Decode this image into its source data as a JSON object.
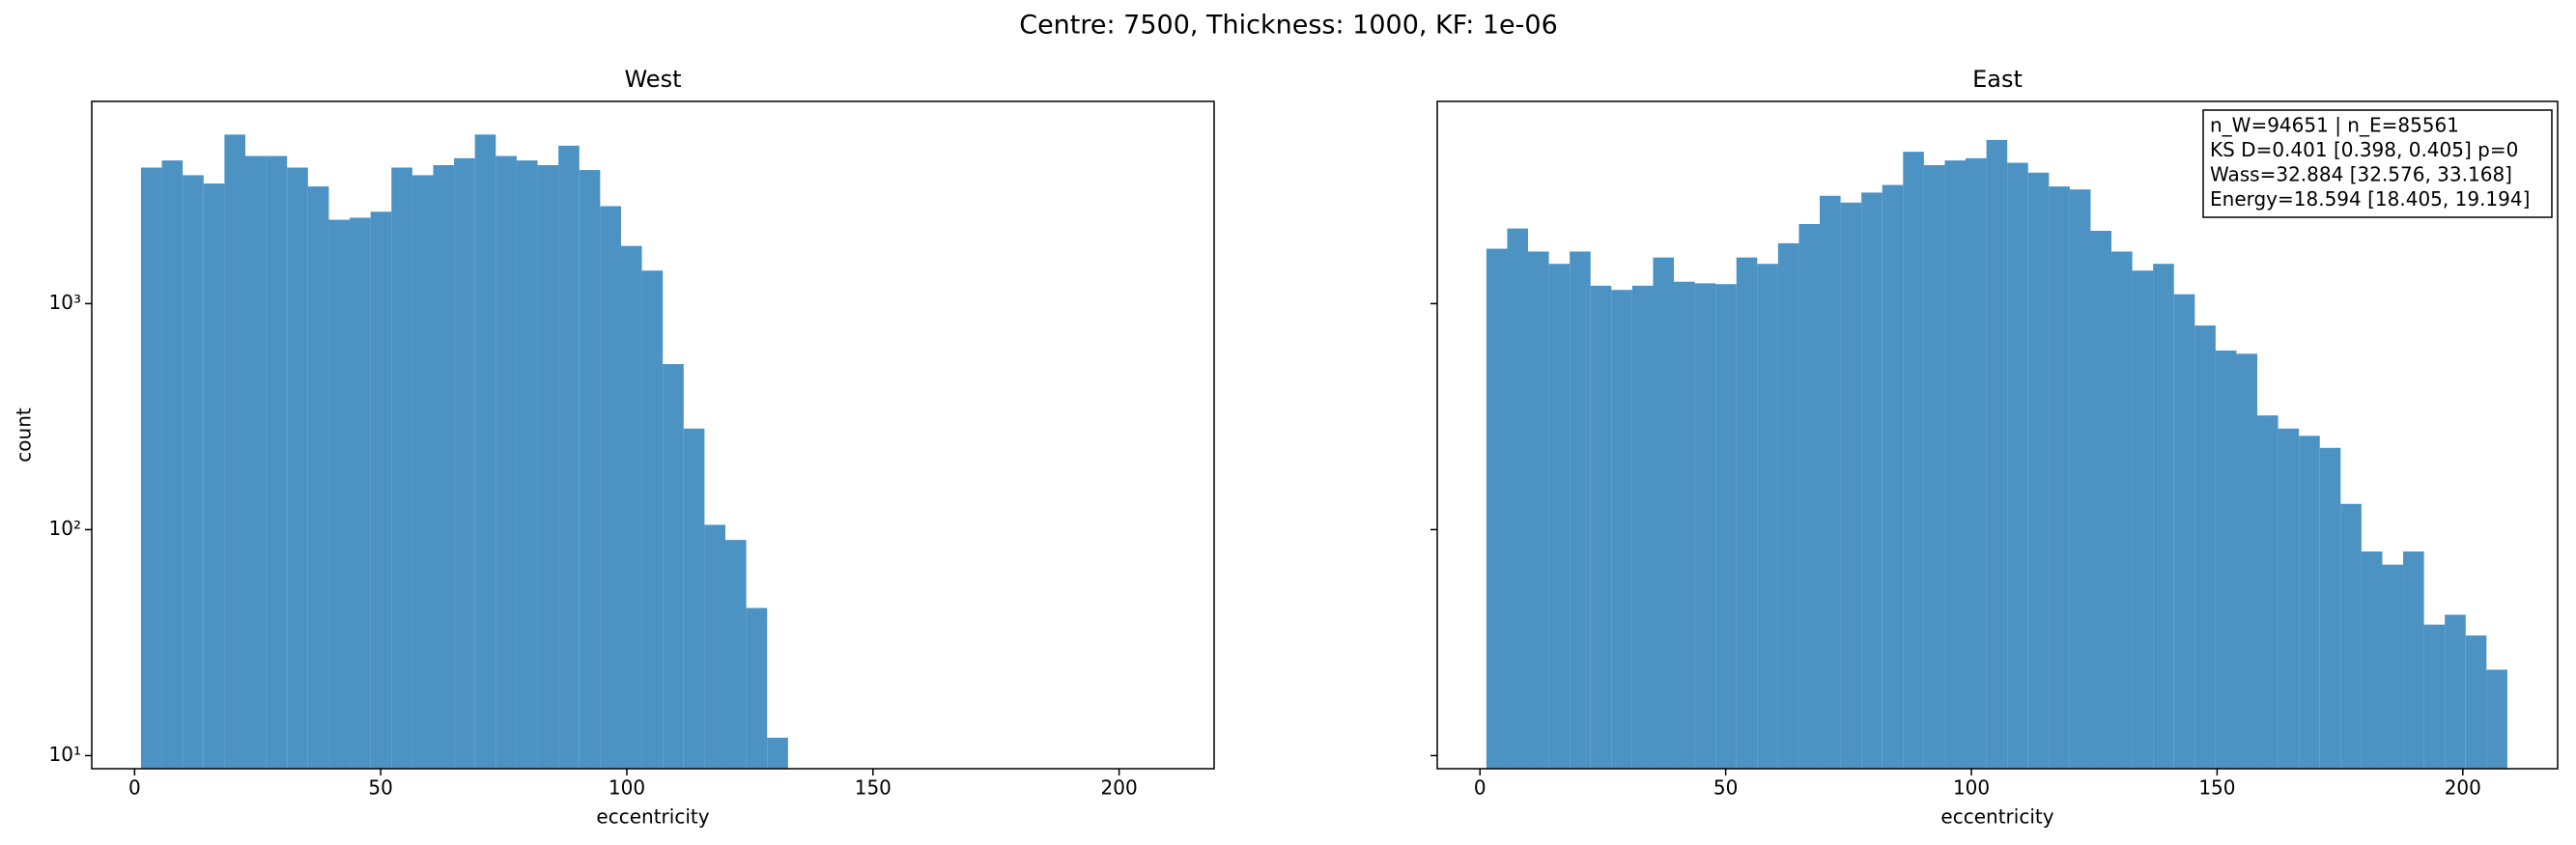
{
  "title": "Centre: 7500, Thickness: 1000, KF: 1e-06",
  "chart_data": [
    {
      "type": "histogram",
      "title": "West",
      "x_label": "eccentricity",
      "y_label": "count",
      "color": "#4c92c3",
      "log_y": true,
      "bins": [
        1.3,
        5.54,
        9.78,
        14.02,
        18.26,
        22.5,
        26.74,
        30.98,
        35.22,
        39.46,
        43.7,
        47.94,
        52.18,
        56.42,
        60.66,
        64.9,
        69.14,
        73.38,
        77.62,
        81.86,
        86.1,
        90.34,
        94.58,
        98.82,
        103.06,
        107.3,
        111.54,
        115.78,
        120.02,
        124.26,
        128.5,
        132.74
      ],
      "values": [
        4000,
        4300,
        3700,
        3400,
        5600,
        4500,
        4500,
        4000,
        3300,
        2350,
        2400,
        2550,
        4000,
        3700,
        4100,
        4400,
        5600,
        4500,
        4300,
        4100,
        5000,
        3900,
        2700,
        1800,
        1400,
        540,
        280,
        105,
        90,
        45,
        12
      ],
      "xlim": [
        -8.7,
        219.3
      ],
      "xticks": [
        0,
        50,
        100,
        150,
        200
      ],
      "ylim": [
        8.75,
        7850
      ],
      "yticks": [
        {
          "value": 10,
          "label": "10¹"
        },
        {
          "value": 100,
          "label": "10²"
        },
        {
          "value": 1000,
          "label": "10³"
        }
      ]
    },
    {
      "type": "histogram",
      "title": "East",
      "x_label": "eccentricity",
      "color": "#4c92c3",
      "log_y": true,
      "bins": [
        1.3,
        5.54,
        9.78,
        14.02,
        18.26,
        22.5,
        26.74,
        30.98,
        35.22,
        39.46,
        43.7,
        47.94,
        52.18,
        56.42,
        60.66,
        64.9,
        69.14,
        73.38,
        77.62,
        81.86,
        86.1,
        90.34,
        94.58,
        98.82,
        103.06,
        107.3,
        111.54,
        115.78,
        120.02,
        124.26,
        128.5,
        132.74,
        136.98,
        141.22,
        145.46,
        149.7,
        153.94,
        158.18,
        162.42,
        166.66,
        170.9,
        175.14,
        179.38,
        183.62,
        187.86,
        192.1,
        196.34,
        200.58,
        204.82,
        209.06
      ],
      "values": [
        1750,
        2150,
        1700,
        1500,
        1700,
        1200,
        1150,
        1200,
        1600,
        1250,
        1230,
        1220,
        1600,
        1500,
        1850,
        2250,
        3000,
        2800,
        3100,
        3350,
        4700,
        4100,
        4300,
        4400,
        5300,
        4200,
        3800,
        3300,
        3200,
        2100,
        1700,
        1400,
        1500,
        1100,
        800,
        620,
        600,
        320,
        280,
        260,
        230,
        130,
        80,
        70,
        80,
        38,
        42,
        34,
        24
      ],
      "xlim": [
        -8.7,
        219.3
      ],
      "xticks": [
        0,
        50,
        100,
        150,
        200
      ],
      "ylim": [
        8.75,
        7850
      ],
      "yticks": [
        10,
        100,
        1000
      ],
      "annotation": [
        "n_W=94651 | n_E=85561",
        "KS D=0.401 [0.398, 0.405]  p=0",
        "Wass=32.884 [32.576, 33.168]",
        "Energy=18.594 [18.405, 19.194]"
      ]
    }
  ]
}
